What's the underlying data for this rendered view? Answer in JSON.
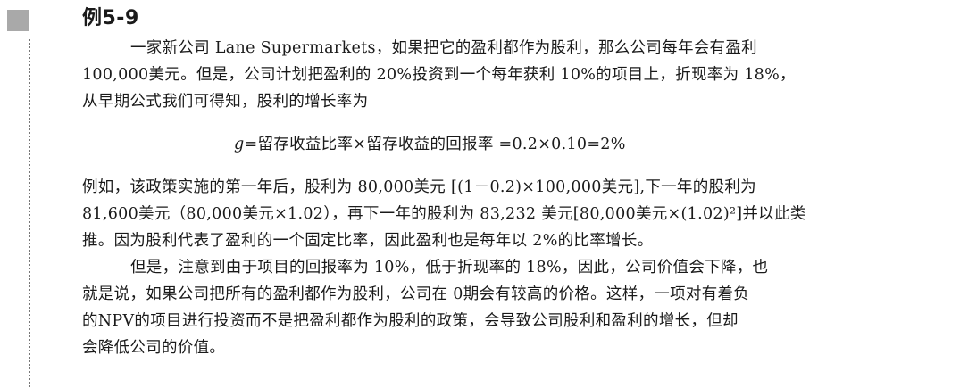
{
  "example": {
    "title": "例5-9"
  },
  "paragraph1": {
    "lines": [
      "一家新公司 Lane Supermarkets，如果把它的盈利都作为股利，那么公司每年会有盈利",
      "100,000美元。但是，公司计划把盈利的 20%投资到一个每年获利 10%的项目上，折现率为 18%，",
      "从早期公式我们可得知，股利的增长率为"
    ]
  },
  "formula": {
    "variable": "g",
    "expression": "=留存收益比率×留存收益的回报率 =0.2×0.10=2%"
  },
  "paragraph2": {
    "lines": [
      "例如，该政策实施的第一年后，股利为 80,000美元 [(1－0.2)×100,000美元],下一年的股利为",
      "81,600美元（80,000美元×1.02），再下一年的股利为 83,232 美元[80,000美元×(1.02)²]并以此类",
      "推。因为股利代表了盈利的一个固定比率，因此盈利也是每年以 2%的比率增长。"
    ]
  },
  "paragraph3": {
    "lines": [
      "但是，注意到由于项目的回报率为 10%，低于折现率的 18%，因此，公司价值会下降，也",
      "就是说，如果公司把所有的盈利都作为股利，公司在 0期会有较高的价格。这样，一项对有着负",
      "的NPV的项目进行投资而不是把盈利都作为股利的政策，会导致公司股利和盈利的增长，但却",
      "会降低公司的价值。"
    ]
  }
}
